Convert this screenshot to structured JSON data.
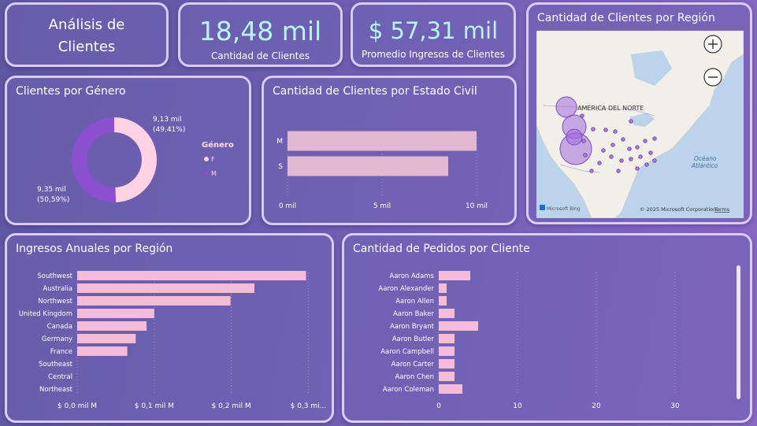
{
  "header": {
    "title_line1": "Análisis de",
    "title_line2": "Clientes"
  },
  "kpis": {
    "customers_value": "18,48 mil",
    "customers_label": "Cantidad de Clientes",
    "income_value": "$ 57,31 mil",
    "income_label": "Promedio Ingresos de Clientes"
  },
  "gender": {
    "title": "Clientes por Género",
    "legend_title": "Género",
    "label_f_value": "9,13 mil",
    "label_f_pct": "(49,41%)",
    "label_m_value": "9,35 mil",
    "label_m_pct": "(50,59%)",
    "colors": {
      "F": "#ffd3e3",
      "M": "#8c4fd0"
    }
  },
  "marital": {
    "title": "Cantidad de Clientes por Estado Civil"
  },
  "map": {
    "title": "Cantidad de Clientes por Región",
    "continent_label": "AMÉRICA DEL NORTE",
    "ocean_line1": "Océano",
    "ocean_line2": "Atlántico",
    "attribution_logo": "Microsoft Bing",
    "attribution": "© 2025 Microsoft Corporation",
    "terms": "Terms",
    "zoom_in_icon": "plus-icon",
    "zoom_out_icon": "minus-icon"
  },
  "region_income": {
    "title": "Ingresos Anuales por Región"
  },
  "orders": {
    "title": "Cantidad de Pedidos por Cliente"
  },
  "chart_data": [
    {
      "id": "gender",
      "type": "pie",
      "title": "Clientes por Género",
      "legend_title": "Género",
      "categories": [
        "F",
        "M"
      ],
      "values": [
        9130,
        9350
      ],
      "labels": [
        "9,13 mil (49,41%)",
        "9,35 mil (50,59%)"
      ],
      "legend": "right"
    },
    {
      "id": "marital",
      "type": "bar",
      "orientation": "horizontal",
      "title": "Cantidad de Clientes por Estado Civil",
      "categories": [
        "M",
        "S"
      ],
      "values": [
        10000,
        8500
      ],
      "ticks": [
        "0 mil",
        "5 mil",
        "10 mil"
      ],
      "xlim": [
        0,
        10500
      ],
      "grid": true
    },
    {
      "id": "region_income",
      "type": "bar",
      "orientation": "horizontal",
      "title": "Ingresos Anuales por Región",
      "categories": [
        "Southwest",
        "Australia",
        "Northwest",
        "United Kingdom",
        "Canada",
        "Germany",
        "France",
        "Southeast",
        "Central",
        "Northeast"
      ],
      "values": [
        0.297,
        0.23,
        0.199,
        0.1,
        0.09,
        0.076,
        0.065,
        0,
        0,
        0
      ],
      "unit": "mil M",
      "ticks": [
        "$ 0,0 mil M",
        "$ 0,1 mil M",
        "$ 0,2 mil M",
        "$ 0,3 mi..."
      ],
      "xlim": [
        0,
        0.32
      ],
      "grid": true
    },
    {
      "id": "orders",
      "type": "bar",
      "orientation": "horizontal",
      "title": "Cantidad de Pedidos por Cliente",
      "categories": [
        "Aaron Adams",
        "Aaron Alexander",
        "Aaron Allen",
        "Aaron Baker",
        "Aaron Bryant",
        "Aaron Butler",
        "Aaron Campbell",
        "Aaron Carter",
        "Aaron Chen",
        "Aaron Coleman"
      ],
      "values": [
        4,
        1,
        1,
        2,
        5,
        2,
        2,
        2,
        2,
        3
      ],
      "ticks": [
        "0",
        "10",
        "20",
        "30"
      ],
      "xlim": [
        0,
        36
      ],
      "grid": true
    },
    {
      "id": "map",
      "type": "scatter",
      "title": "Cantidad de Clientes por Región",
      "note": "bubble map of customer locations in North America"
    }
  ]
}
